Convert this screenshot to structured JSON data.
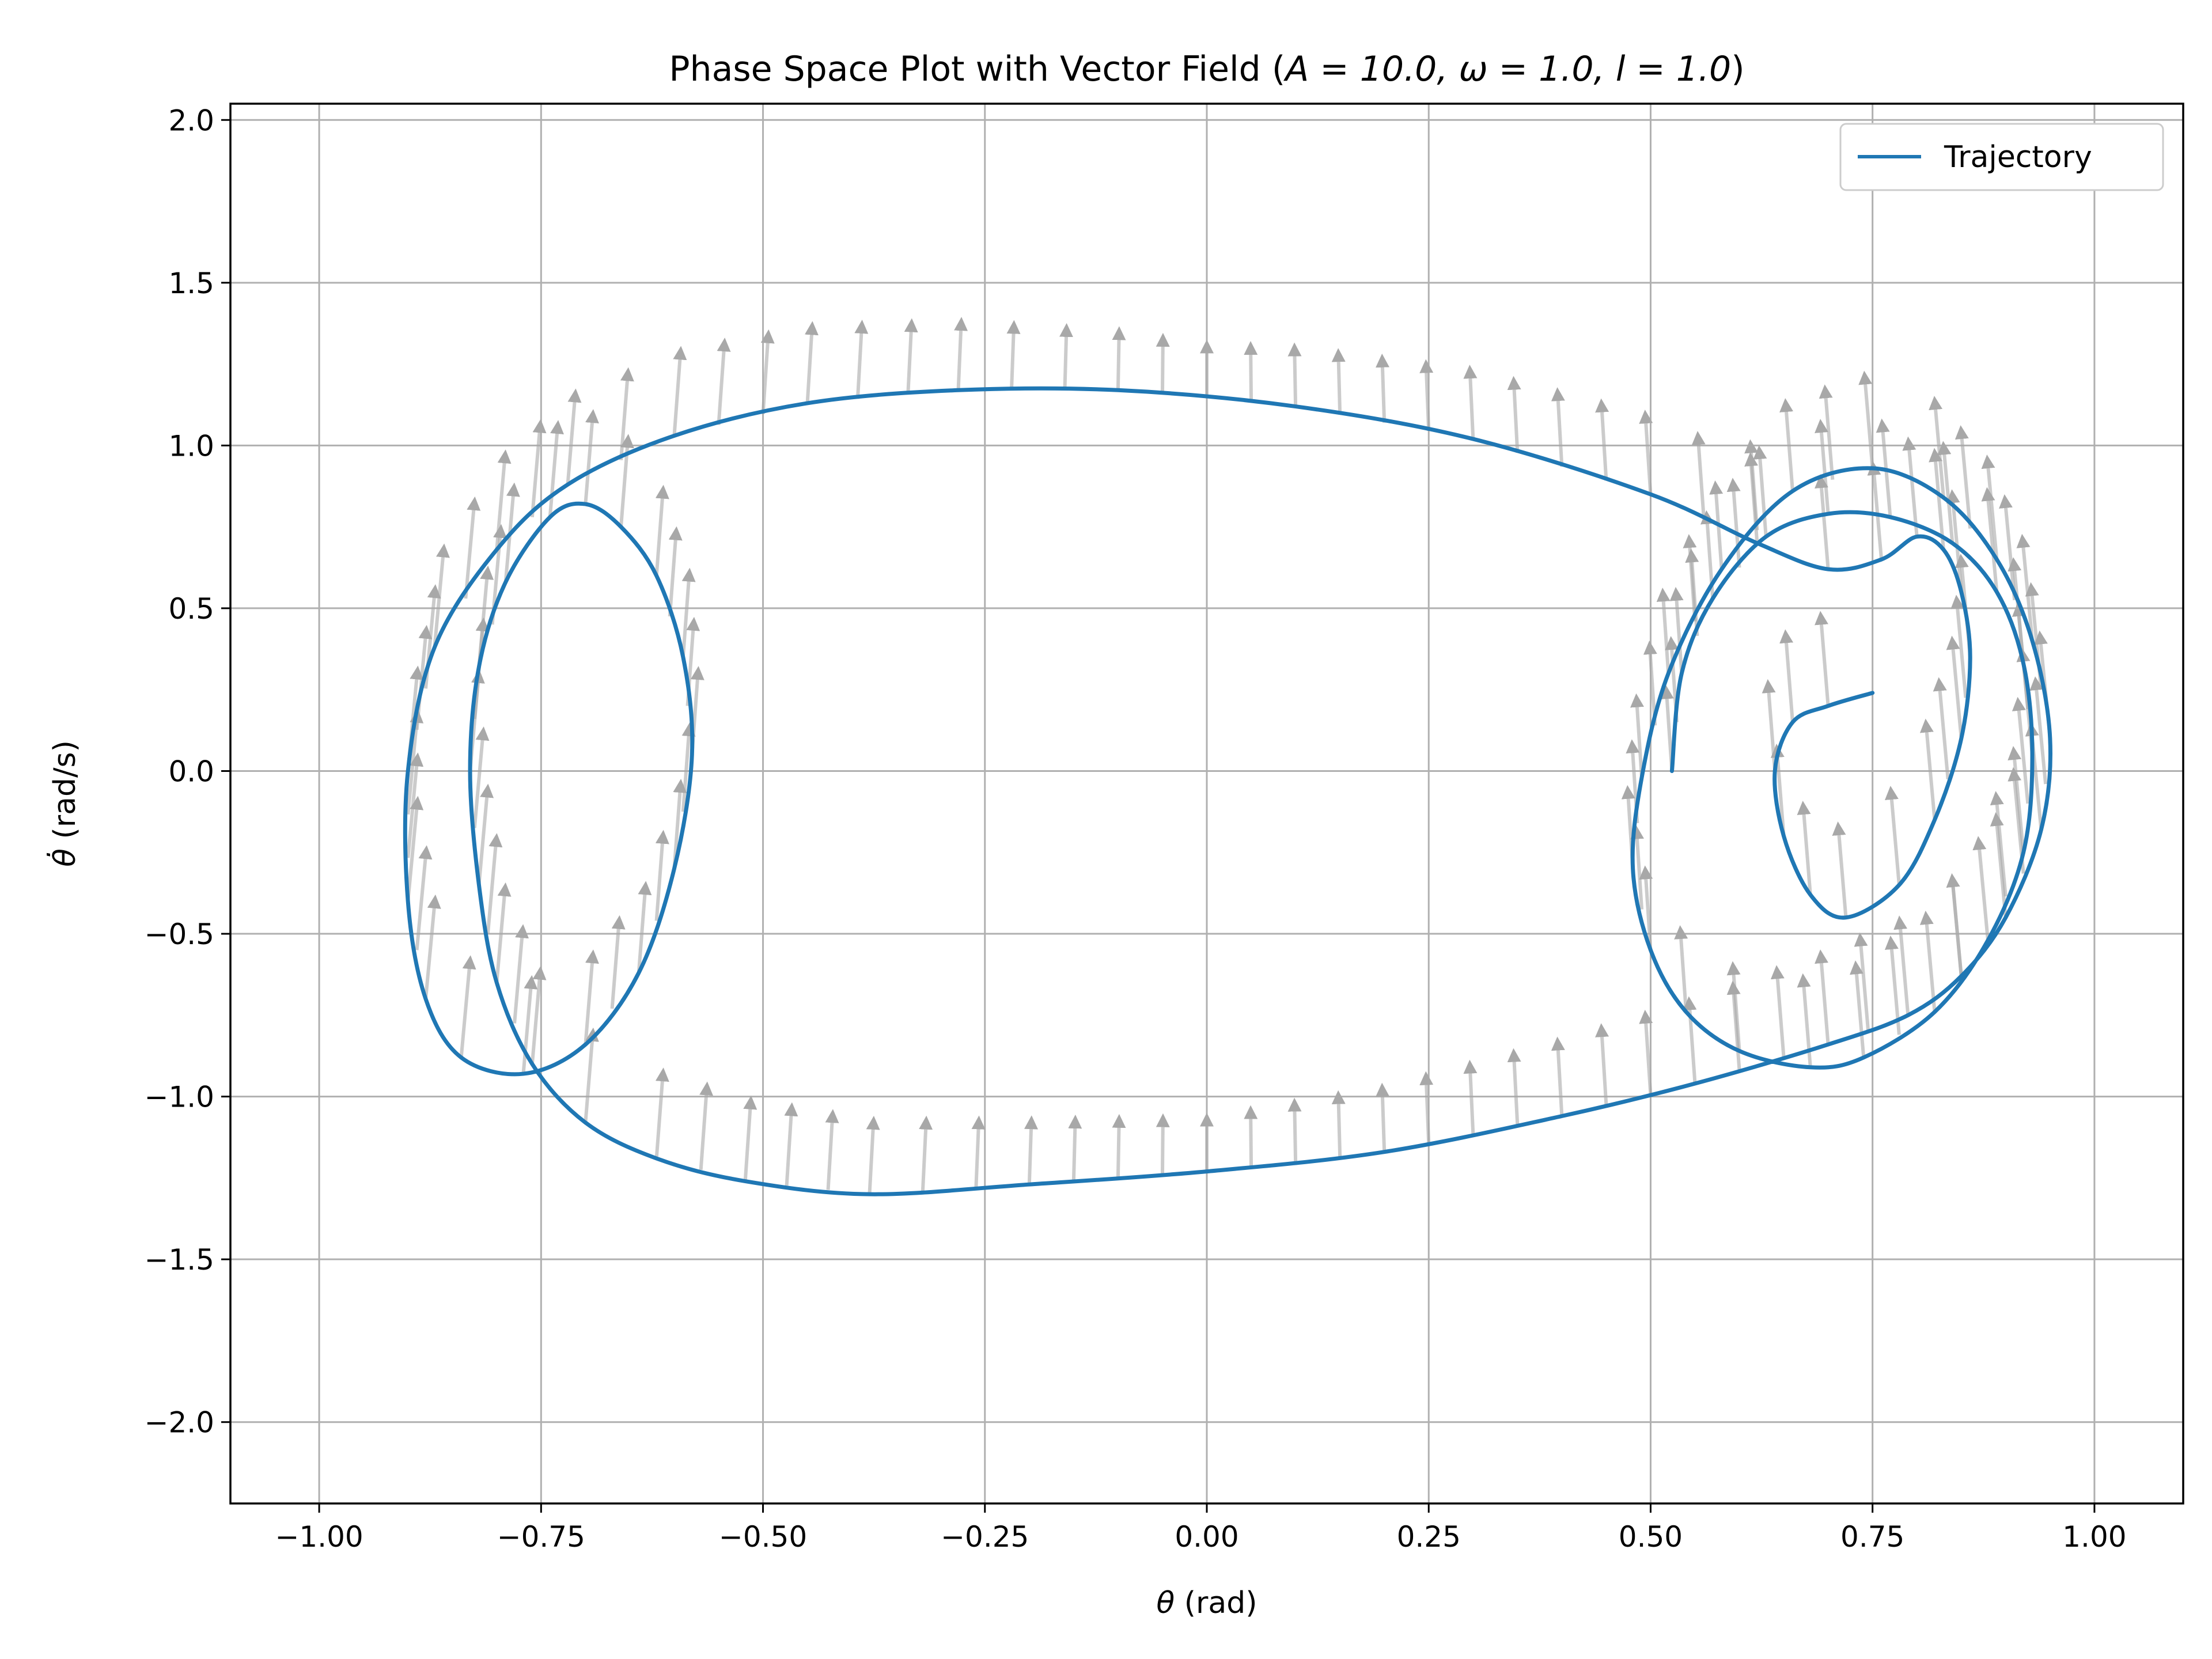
{
  "chart_data": {
    "type": "line",
    "title_prefix": "Phase Space Plot with Vector Field (",
    "title_math": "A = 10.0, ω = 1.0, l = 1.0",
    "title_suffix": ")",
    "xlabel_symbol": "θ",
    "xlabel_unit": " (rad)",
    "ylabel_symbol": "θ̇",
    "ylabel_unit": " (rad/s)",
    "xlim": [
      -1.1,
      1.1
    ],
    "ylim": [
      -2.25,
      2.05
    ],
    "x_ticks": [
      -1.0,
      -0.75,
      -0.5,
      -0.25,
      0.0,
      0.25,
      0.5,
      0.75,
      1.0
    ],
    "x_tick_labels": [
      "−1.00",
      "−0.75",
      "−0.50",
      "−0.25",
      "0.00",
      "0.25",
      "0.50",
      "0.75",
      "1.00"
    ],
    "y_ticks": [
      -2.0,
      -1.5,
      -1.0,
      -0.5,
      0.0,
      0.5,
      1.0,
      1.5,
      2.0
    ],
    "y_tick_labels": [
      "−2.0",
      "−1.5",
      "−1.0",
      "−0.5",
      "0.0",
      "0.5",
      "1.0",
      "1.5",
      "2.0"
    ],
    "grid": true,
    "legend_position": "top-right",
    "series": [
      {
        "name": "Trajectory",
        "color": "#1f77b4",
        "points": [
          [
            0.524,
            0.0
          ],
          [
            0.535,
            0.3
          ],
          [
            0.57,
            0.53
          ],
          [
            0.63,
            0.72
          ],
          [
            0.7,
            0.79
          ],
          [
            0.77,
            0.78
          ],
          [
            0.84,
            0.7
          ],
          [
            0.89,
            0.55
          ],
          [
            0.92,
            0.33
          ],
          [
            0.93,
            0.05
          ],
          [
            0.92,
            -0.25
          ],
          [
            0.88,
            -0.52
          ],
          [
            0.82,
            -0.74
          ],
          [
            0.74,
            -0.88
          ],
          [
            0.68,
            -0.91
          ],
          [
            0.6,
            -0.86
          ],
          [
            0.54,
            -0.74
          ],
          [
            0.5,
            -0.55
          ],
          [
            0.48,
            -0.3
          ],
          [
            0.49,
            -0.02
          ],
          [
            0.52,
            0.3
          ],
          [
            0.58,
            0.62
          ],
          [
            0.66,
            0.86
          ],
          [
            0.75,
            0.93
          ],
          [
            0.83,
            0.84
          ],
          [
            0.89,
            0.65
          ],
          [
            0.93,
            0.4
          ],
          [
            0.95,
            0.1
          ],
          [
            0.94,
            -0.18
          ],
          [
            0.9,
            -0.45
          ],
          [
            0.85,
            -0.63
          ],
          [
            0.79,
            -0.75
          ],
          [
            0.7,
            -0.84
          ],
          [
            0.55,
            -0.96
          ],
          [
            0.4,
            -1.06
          ],
          [
            0.2,
            -1.17
          ],
          [
            0.0,
            -1.23
          ],
          [
            -0.2,
            -1.27
          ],
          [
            -0.38,
            -1.3
          ],
          [
            -0.52,
            -1.26
          ],
          [
            -0.62,
            -1.19
          ],
          [
            -0.7,
            -1.08
          ],
          [
            -0.76,
            -0.9
          ],
          [
            -0.8,
            -0.65
          ],
          [
            -0.82,
            -0.35
          ],
          [
            -0.83,
            0.0
          ],
          [
            -0.82,
            0.32
          ],
          [
            -0.79,
            0.58
          ],
          [
            -0.74,
            0.78
          ],
          [
            -0.7,
            0.82
          ],
          [
            -0.66,
            0.75
          ],
          [
            -0.62,
            0.6
          ],
          [
            -0.59,
            0.35
          ],
          [
            -0.58,
            0.05
          ],
          [
            -0.6,
            -0.3
          ],
          [
            -0.64,
            -0.62
          ],
          [
            -0.7,
            -0.84
          ],
          [
            -0.77,
            -0.93
          ],
          [
            -0.84,
            -0.88
          ],
          [
            -0.88,
            -0.7
          ],
          [
            -0.9,
            -0.4
          ],
          [
            -0.9,
            0.0
          ],
          [
            -0.87,
            0.38
          ],
          [
            -0.8,
            0.68
          ],
          [
            -0.72,
            0.88
          ],
          [
            -0.6,
            1.03
          ],
          [
            -0.45,
            1.13
          ],
          [
            -0.28,
            1.17
          ],
          [
            -0.1,
            1.17
          ],
          [
            0.1,
            1.12
          ],
          [
            0.3,
            1.02
          ],
          [
            0.5,
            0.85
          ],
          [
            0.62,
            0.7
          ],
          [
            0.7,
            0.62
          ],
          [
            0.76,
            0.65
          ],
          [
            0.8,
            0.72
          ],
          [
            0.83,
            0.68
          ],
          [
            0.85,
            0.55
          ],
          [
            0.86,
            0.35
          ],
          [
            0.85,
            0.1
          ],
          [
            0.82,
            -0.15
          ],
          [
            0.78,
            -0.35
          ],
          [
            0.72,
            -0.45
          ],
          [
            0.68,
            -0.38
          ],
          [
            0.65,
            -0.2
          ],
          [
            0.64,
            0.0
          ],
          [
            0.66,
            0.15
          ],
          [
            0.7,
            0.2
          ],
          [
            0.75,
            0.24
          ]
        ]
      }
    ],
    "vector_field_color": "#a0a0a0"
  }
}
